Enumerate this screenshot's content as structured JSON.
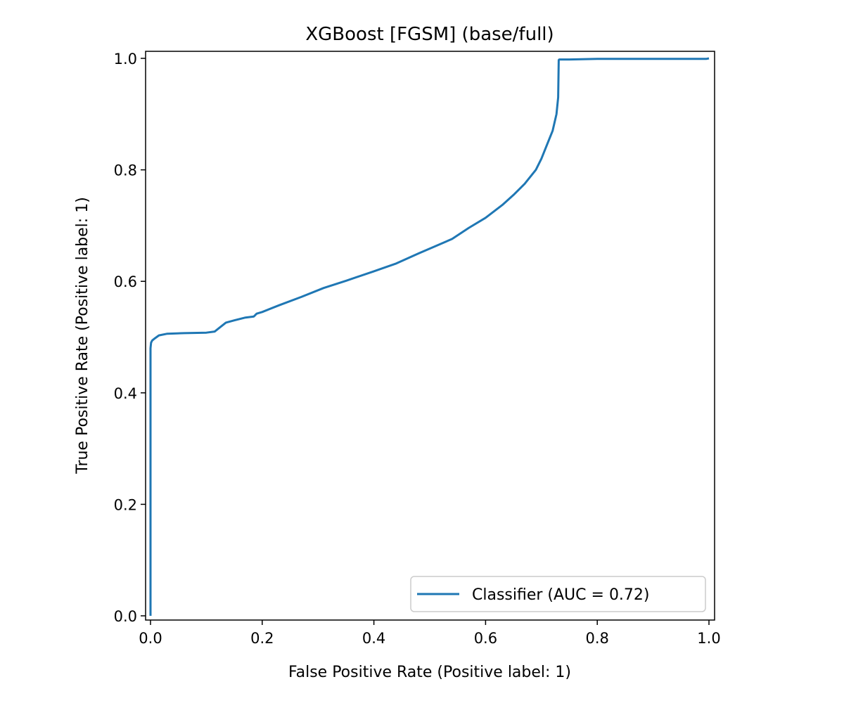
{
  "chart_data": {
    "type": "line",
    "title": "XGBoost [FGSM] (base/full)",
    "xlabel": "False Positive Rate (Positive label: 1)",
    "ylabel": "True Positive Rate (Positive label: 1)",
    "xlim": [
      0.0,
      1.0
    ],
    "ylim": [
      0.0,
      1.0
    ],
    "xticks": [
      "0.0",
      "0.2",
      "0.4",
      "0.6",
      "0.8",
      "1.0"
    ],
    "yticks": [
      "0.0",
      "0.2",
      "0.4",
      "0.6",
      "0.8",
      "1.0"
    ],
    "grid": false,
    "legend_position": "lower-right",
    "series": [
      {
        "name": "Classifier (AUC = 0.72)",
        "color": "#1f77b4",
        "x": [
          0.0,
          0.0,
          0.001,
          0.003,
          0.008,
          0.015,
          0.03,
          0.06,
          0.1,
          0.115,
          0.125,
          0.135,
          0.15,
          0.17,
          0.185,
          0.19,
          0.2,
          0.23,
          0.27,
          0.31,
          0.35,
          0.4,
          0.44,
          0.48,
          0.51,
          0.54,
          0.57,
          0.6,
          0.63,
          0.65,
          0.67,
          0.69,
          0.7,
          0.71,
          0.72,
          0.727,
          0.73,
          0.731,
          0.732,
          0.75,
          0.8,
          0.9,
          0.995,
          1.0
        ],
        "y": [
          0.0,
          0.48,
          0.49,
          0.494,
          0.498,
          0.503,
          0.506,
          0.507,
          0.508,
          0.51,
          0.518,
          0.526,
          0.53,
          0.535,
          0.537,
          0.542,
          0.545,
          0.557,
          0.572,
          0.588,
          0.601,
          0.618,
          0.632,
          0.65,
          0.663,
          0.676,
          0.696,
          0.714,
          0.737,
          0.755,
          0.775,
          0.8,
          0.82,
          0.845,
          0.87,
          0.9,
          0.93,
          0.997,
          0.998,
          0.998,
          0.999,
          0.999,
          0.999,
          1.0
        ]
      }
    ]
  }
}
